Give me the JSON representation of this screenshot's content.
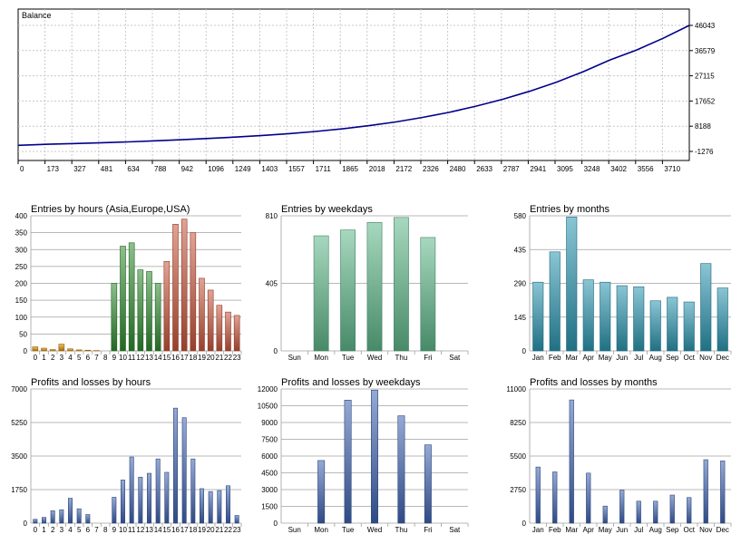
{
  "chart_data": [
    {
      "id": "balance",
      "type": "line",
      "title": "Balance",
      "x_ticks": [
        "0",
        "173",
        "327",
        "481",
        "634",
        "788",
        "942",
        "1096",
        "1249",
        "1403",
        "1557",
        "1711",
        "1865",
        "2018",
        "2172",
        "2326",
        "2480",
        "2633",
        "2787",
        "2941",
        "3095",
        "3248",
        "3402",
        "3556",
        "3710"
      ],
      "y_ticks": [
        "46043",
        "36579",
        "27115",
        "17652",
        "8188",
        "-1276"
      ],
      "xlim": [
        0,
        3860
      ],
      "ylim": [
        -1276,
        46043
      ],
      "grid": true,
      "color": "#00008b",
      "series": [
        {
          "x": [
            0,
            173,
            327,
            481,
            634,
            788,
            942,
            1096,
            1249,
            1403,
            1557,
            1711,
            1865,
            2018,
            2172,
            2326,
            2480,
            2633,
            2787,
            2941,
            3095,
            3248,
            3402,
            3556,
            3710,
            3860
          ],
          "y": [
            1000,
            1400,
            1700,
            2000,
            2300,
            2700,
            3100,
            3600,
            4100,
            4700,
            5400,
            6200,
            7200,
            8400,
            9800,
            11500,
            13400,
            15700,
            18300,
            21300,
            24700,
            28600,
            33000,
            36800,
            41200,
            46043
          ]
        }
      ]
    },
    {
      "id": "entries_hours",
      "type": "bar",
      "title": "Entries by hours (Asia,Europe,USA)",
      "categories": [
        "0",
        "1",
        "2",
        "3",
        "4",
        "5",
        "6",
        "7",
        "8",
        "9",
        "10",
        "11",
        "12",
        "13",
        "14",
        "15",
        "16",
        "17",
        "18",
        "19",
        "20",
        "21",
        "22",
        "23"
      ],
      "values": [
        12,
        8,
        4,
        20,
        6,
        3,
        2,
        1,
        0,
        200,
        310,
        320,
        240,
        235,
        200,
        265,
        375,
        390,
        350,
        215,
        180,
        135,
        115,
        105
      ],
      "y_ticks": [
        "400",
        "350",
        "300",
        "250",
        "200",
        "150",
        "100",
        "50",
        "0"
      ],
      "ylim": [
        0,
        400
      ],
      "colors": {
        "asia": "#d98c00",
        "europe": "#2e8b2e",
        "usa": "#c8553b"
      }
    },
    {
      "id": "entries_weekdays",
      "type": "bar",
      "title": "Entries by weekdays",
      "categories": [
        "Sun",
        "Mon",
        "Tue",
        "Wed",
        "Thu",
        "Fri",
        "Sat"
      ],
      "values": [
        0,
        690,
        725,
        770,
        800,
        680,
        0
      ],
      "y_ticks": [
        "810",
        "405",
        "0"
      ],
      "ylim": [
        0,
        810
      ],
      "color": "#5fb88a"
    },
    {
      "id": "entries_months",
      "type": "bar",
      "title": "Entries by months",
      "categories": [
        "Jan",
        "Feb",
        "Mar",
        "Apr",
        "May",
        "Jun",
        "Jul",
        "Aug",
        "Sep",
        "Oct",
        "Nov",
        "Dec"
      ],
      "values": [
        295,
        425,
        575,
        305,
        295,
        280,
        275,
        215,
        230,
        210,
        375,
        270
      ],
      "y_ticks": [
        "580",
        "435",
        "290",
        "145",
        "0"
      ],
      "ylim": [
        0,
        580
      ],
      "color": "#2a95b0"
    },
    {
      "id": "pl_hours",
      "type": "bar",
      "title": "Profits and losses by hours",
      "categories": [
        "0",
        "1",
        "2",
        "3",
        "4",
        "5",
        "6",
        "7",
        "8",
        "9",
        "10",
        "11",
        "12",
        "13",
        "14",
        "15",
        "16",
        "17",
        "18",
        "19",
        "20",
        "21",
        "22",
        "23"
      ],
      "values": [
        200,
        300,
        650,
        700,
        1300,
        750,
        450,
        0,
        0,
        1350,
        2250,
        3450,
        2400,
        2600,
        3350,
        2650,
        6000,
        5500,
        3350,
        1800,
        1650,
        1700,
        1950,
        400
      ],
      "y_ticks": [
        "7000",
        "5250",
        "3500",
        "1750",
        "0"
      ],
      "ylim": [
        0,
        7000
      ],
      "color": "#3e63b0"
    },
    {
      "id": "pl_weekdays",
      "type": "bar",
      "title": "Profits and losses by weekdays",
      "categories": [
        "Sun",
        "Mon",
        "Tue",
        "Wed",
        "Thu",
        "Fri",
        "Sat"
      ],
      "values": [
        0,
        5600,
        11000,
        11900,
        9600,
        7000,
        0
      ],
      "y_ticks": [
        "12000",
        "10500",
        "9000",
        "7500",
        "6000",
        "4500",
        "3000",
        "1500",
        "0"
      ],
      "ylim": [
        0,
        12000
      ],
      "color": "#3e63b0"
    },
    {
      "id": "pl_months",
      "type": "bar",
      "title": "Profits and losses by months",
      "categories": [
        "Jan",
        "Feb",
        "Mar",
        "Apr",
        "May",
        "Jun",
        "Jul",
        "Aug",
        "Sep",
        "Oct",
        "Nov",
        "Dec"
      ],
      "values": [
        4600,
        4200,
        10100,
        4100,
        1400,
        2700,
        1800,
        1800,
        2300,
        2100,
        5200,
        5100
      ],
      "y_ticks": [
        "11000",
        "8250",
        "5500",
        "2750",
        "0"
      ],
      "ylim": [
        0,
        11000
      ],
      "color": "#3e63b0"
    }
  ]
}
